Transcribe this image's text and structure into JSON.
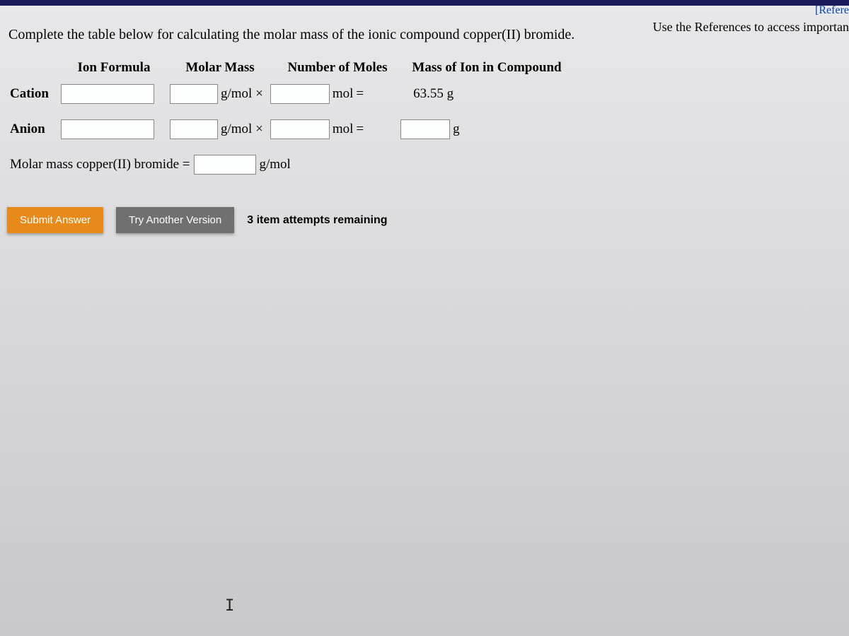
{
  "topLink": "[Refere",
  "topText": "Use the References to access importan",
  "question": "Complete the table below for calculating the molar mass of the ionic compound copper(II) bromide.",
  "headers": {
    "ionFormula": "Ion Formula",
    "molarMass": "Molar Mass",
    "numMoles": "Number of Moles",
    "massIon": "Mass of Ion in Compound"
  },
  "rows": {
    "cation": {
      "label": "Cation",
      "unitMM": "g/mol ×",
      "unitMol": "mol",
      "eq": "=",
      "massValue": "63.55 g"
    },
    "anion": {
      "label": "Anion",
      "unitMM": "g/mol ×",
      "unitMol": "mol",
      "eq": "=",
      "unitG": "g"
    }
  },
  "total": {
    "label": "Molar mass copper(II) bromide =",
    "unit": "g/mol"
  },
  "buttons": {
    "submit": "Submit Answer",
    "tryAnother": "Try Another Version"
  },
  "attempts": "3 item attempts remaining",
  "cursor": "I"
}
